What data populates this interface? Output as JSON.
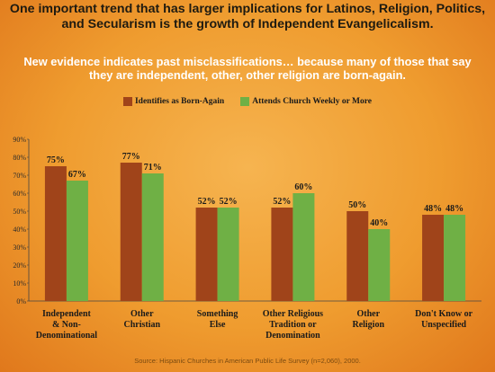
{
  "slide": {
    "headline": "One important trend that has larger implications for Latinos, Religion, Politics, and Secularism is the growth of Independent Evangelicalism.",
    "subline": "New evidence indicates past misclassifications… because many of those that say they are independent, other, other religion are born-again.",
    "source": "Source: Hispanic Churches in American Public Life Survey (n=2,060), 2000."
  },
  "colors": {
    "series1": "#a0441a",
    "series2": "#6fb045"
  },
  "chart_data": {
    "type": "bar",
    "title": "",
    "xlabel": "",
    "ylabel": "",
    "ylim": [
      0,
      90
    ],
    "yticks": [
      "0%",
      "10%",
      "20%",
      "30%",
      "40%",
      "50%",
      "60%",
      "70%",
      "80%",
      "90%"
    ],
    "grid": false,
    "legend": "top",
    "categories": [
      [
        "Independent",
        "& Non-",
        "Denominational"
      ],
      [
        "Other",
        "Christian"
      ],
      [
        "Something",
        "Else"
      ],
      [
        "Other Religious",
        "Tradition or",
        "Denomination"
      ],
      [
        "Other",
        "Religion"
      ],
      [
        "Don't Know or",
        "Unspecified"
      ]
    ],
    "series": [
      {
        "name": "Identifies as Born-Again",
        "values": [
          75,
          77,
          52,
          52,
          50,
          48
        ],
        "labels": [
          "75%",
          "77%",
          "52%",
          "52%",
          "50%",
          "48%"
        ]
      },
      {
        "name": "Attends Church Weekly or More",
        "values": [
          67,
          71,
          52,
          60,
          40,
          48
        ],
        "labels": [
          "67%",
          "71%",
          "52%",
          "60%",
          "40%",
          "48%"
        ]
      }
    ]
  }
}
